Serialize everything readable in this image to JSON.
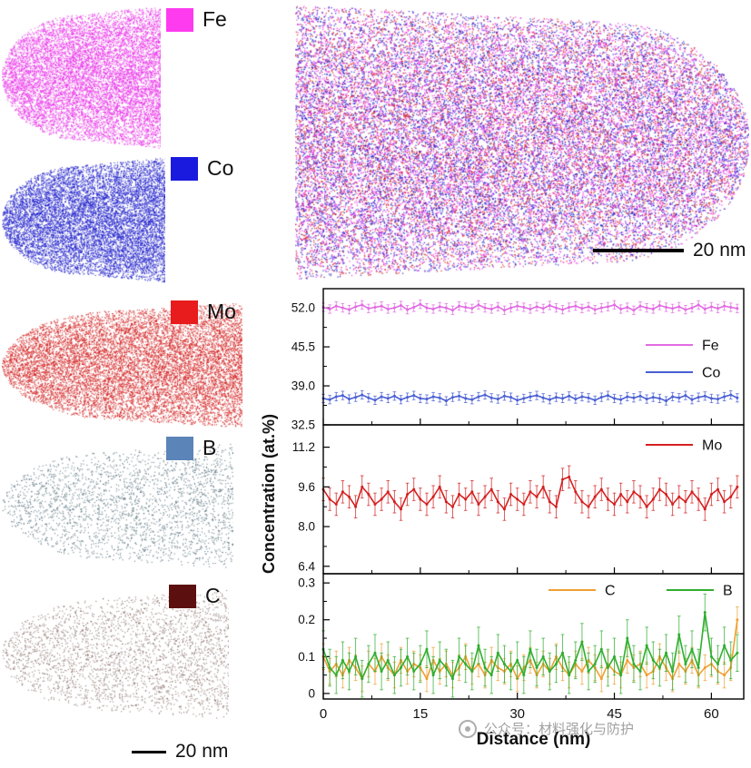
{
  "ion_maps": [
    {
      "id": "fe",
      "label": "Fe",
      "legend_color": "#ff3bf0",
      "dot_color": "#e935e9"
    },
    {
      "id": "co",
      "label": "Co",
      "legend_color": "#1a1adf",
      "dot_color": "#2222cc"
    },
    {
      "id": "mo",
      "label": "Mo",
      "legend_color": "#e81c1c",
      "dot_color": "#d42020"
    },
    {
      "id": "b",
      "label": "B",
      "legend_color": "#5b84b8",
      "dot_color": "#44606e"
    },
    {
      "id": "c",
      "label": "C",
      "legend_color": "#5c0f0f",
      "dot_color": "#7a5f57"
    }
  ],
  "combined_map": {
    "scale_label": "20 nm",
    "colors": [
      "#e935e9",
      "#e935e9",
      "#e935e9",
      "#2222cc",
      "#2222cc",
      "#2222cc",
      "#d42020",
      "#d42020"
    ]
  },
  "left_scale_label": "20 nm",
  "watermark": {
    "text": "公众号：材料强化与防护"
  },
  "chart_data": {
    "type": "line",
    "xlabel": "Distance (nm)",
    "ylabel": "Concentration (at.%)",
    "xlim": [
      0,
      65
    ],
    "x_tick_values": [
      0,
      15,
      30,
      45,
      60
    ],
    "x_tick_labels": [
      "0",
      "15",
      "30",
      "45",
      "60"
    ],
    "legend_position": "inside-right",
    "grid": false,
    "panels": [
      {
        "ylim": [
          32.5,
          55.2
        ],
        "ytick_values": [
          52.0,
          45.5,
          39.0,
          32.5
        ],
        "ytick_labels": [
          "52.0",
          "45.5",
          "39.0",
          "32.5"
        ],
        "series": [
          {
            "name": "Fe",
            "color": "#e26be2",
            "err": 0.7,
            "values": [
              52.1,
              51.8,
              52.3,
              52.0,
              51.7,
              52.2,
              52.5,
              51.9,
              52.1,
              52.3,
              51.8,
              52.0,
              52.4,
              51.7,
              52.1,
              52.6,
              52.0,
              51.8,
              52.2,
              52.0,
              51.6,
              52.3,
              52.1,
              51.9,
              52.5,
              52.0,
              51.8,
              52.2,
              51.6,
              52.0,
              52.3,
              52.1,
              51.8,
              52.2,
              51.9,
              52.4,
              52.0,
              51.7,
              52.1,
              52.3,
              51.9,
              52.2,
              51.7,
              52.0,
              52.2,
              52.5,
              51.8,
              52.1,
              51.6,
              52.3,
              52.0,
              51.8,
              52.4,
              52.1,
              51.9,
              52.2,
              51.7,
              52.0,
              52.5,
              51.8,
              52.2,
              51.9,
              52.3,
              52.1,
              51.9
            ]
          },
          {
            "name": "Co",
            "color": "#4a5fd4",
            "err": 0.7,
            "values": [
              36.9,
              36.7,
              37.2,
              37.4,
              36.8,
              37.1,
              37.5,
              37.0,
              36.6,
              37.2,
              36.9,
              37.3,
              36.7,
              37.1,
              37.4,
              36.9,
              36.8,
              37.2,
              37.0,
              36.5,
              37.1,
              37.3,
              36.9,
              36.7,
              37.2,
              37.5,
              37.0,
              36.8,
              37.3,
              37.1,
              36.6,
              36.9,
              37.2,
              37.4,
              37.0,
              36.7,
              37.1,
              36.9,
              37.3,
              36.8,
              37.2,
              37.0,
              36.6,
              37.1,
              37.4,
              36.9,
              36.7,
              37.2,
              37.0,
              37.3,
              36.8,
              37.1,
              36.9,
              36.5,
              37.2,
              37.0,
              37.4,
              36.7,
              37.1,
              37.3,
              36.9,
              36.8,
              37.2,
              37.5,
              37.0
            ]
          }
        ]
      },
      {
        "ylim": [
          6.1,
          12.1
        ],
        "ytick_values": [
          11.2,
          9.6,
          8.0,
          6.4
        ],
        "ytick_labels": [
          "11.2",
          "9.6",
          "8.0",
          "6.4"
        ],
        "series": [
          {
            "name": "Mo",
            "color": "#d42020",
            "err": 0.45,
            "values": [
              9.5,
              9.1,
              8.9,
              9.4,
              9.2,
              8.8,
              9.6,
              9.3,
              8.9,
              9.1,
              9.4,
              9.0,
              8.7,
              9.3,
              9.5,
              9.1,
              8.9,
              9.2,
              9.6,
              9.0,
              8.8,
              9.3,
              9.1,
              9.4,
              8.9,
              9.2,
              9.5,
              9.0,
              8.7,
              9.3,
              9.1,
              8.9,
              9.4,
              9.2,
              9.6,
              9.0,
              8.8,
              9.9,
              10.0,
              9.4,
              9.0,
              8.8,
              9.2,
              9.5,
              9.1,
              8.9,
              9.3,
              9.0,
              9.4,
              9.2,
              8.8,
              9.1,
              9.5,
              9.3,
              8.9,
              9.2,
              9.0,
              9.4,
              9.1,
              8.7,
              9.3,
              9.5,
              9.0,
              9.2,
              9.6
            ]
          }
        ]
      },
      {
        "ylim": [
          -0.015,
          0.325
        ],
        "ytick_values": [
          0.3,
          0.2,
          0.1,
          0
        ],
        "ytick_labels": [
          "0.3",
          "0.2",
          "0.1",
          "0"
        ],
        "series": [
          {
            "name": "C",
            "color": "#efa033",
            "err": 0.035,
            "values": [
              0.1,
              0.06,
              0.08,
              0.05,
              0.09,
              0.07,
              0.04,
              0.08,
              0.06,
              0.1,
              0.07,
              0.05,
              0.09,
              0.06,
              0.08,
              0.07,
              0.04,
              0.09,
              0.06,
              0.08,
              0.05,
              0.07,
              0.1,
              0.06,
              0.08,
              0.05,
              0.09,
              0.07,
              0.06,
              0.08,
              0.04,
              0.07,
              0.09,
              0.05,
              0.08,
              0.06,
              0.1,
              0.07,
              0.05,
              0.08,
              0.06,
              0.09,
              0.07,
              0.04,
              0.08,
              0.06,
              0.05,
              0.09,
              0.07,
              0.08,
              0.05,
              0.06,
              0.1,
              0.07,
              0.04,
              0.08,
              0.06,
              0.09,
              0.05,
              0.07,
              0.08,
              0.06,
              0.05,
              0.07,
              0.2
            ]
          },
          {
            "name": "B",
            "color": "#2fae2f",
            "err": 0.05,
            "values": [
              0.12,
              0.07,
              0.05,
              0.09,
              0.06,
              0.1,
              0.04,
              0.08,
              0.11,
              0.06,
              0.09,
              0.05,
              0.07,
              0.1,
              0.06,
              0.08,
              0.12,
              0.05,
              0.09,
              0.07,
              0.04,
              0.1,
              0.08,
              0.06,
              0.13,
              0.07,
              0.05,
              0.11,
              0.08,
              0.06,
              0.09,
              0.05,
              0.12,
              0.07,
              0.1,
              0.06,
              0.08,
              0.11,
              0.05,
              0.09,
              0.14,
              0.06,
              0.08,
              0.12,
              0.07,
              0.1,
              0.05,
              0.15,
              0.08,
              0.06,
              0.13,
              0.09,
              0.07,
              0.11,
              0.06,
              0.16,
              0.08,
              0.12,
              0.07,
              0.22,
              0.1,
              0.08,
              0.13,
              0.09,
              0.11
            ]
          }
        ]
      }
    ]
  }
}
